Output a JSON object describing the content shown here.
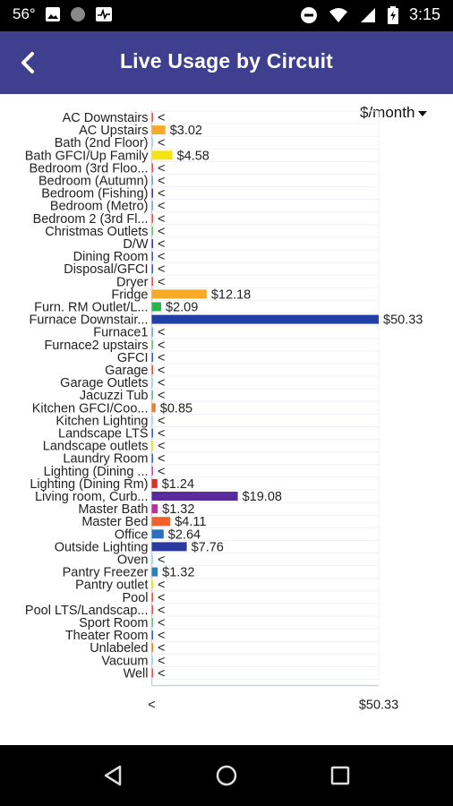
{
  "status": {
    "temp": "56°",
    "time": "3:15"
  },
  "app_bar": {
    "title": "Live Usage by Circuit"
  },
  "unit_selector": {
    "label": "$/month"
  },
  "colors": {
    "app_bar": "#3f3f8f",
    "axis": "#c9d3e0"
  },
  "chart_data": {
    "type": "bar",
    "orientation": "horizontal",
    "categories": [
      "AC Downstairs",
      "AC Upstairs",
      "Bath (2nd Floor)",
      "Bath GFCI/Up Family",
      "Bedroom (3rd Floo...",
      "Bedroom (Autumn)",
      "Bedroom (Fishing)",
      "Bedroom (Metro)",
      "Bedroom 2 (3rd Fl...",
      "Christmas Outlets",
      "D/W",
      "Dining Room",
      "Disposal/GFCI",
      "Dryer",
      "Fridge",
      "Furn. RM Outlet/L...",
      "Furnace Downstair...",
      "Furnace1",
      "Furnace2 upstairs",
      "GFCI",
      "Garage",
      "Garage Outlets",
      "Jacuzzi Tub",
      "Kitchen GFCI/Coo...",
      "Kitchen Lighting",
      "Landscape LTS",
      "Landscape outlets",
      "Laundry Room",
      "Lighting (Dining ...",
      "Lighting (Dining Rm)",
      "Living room, Curb...",
      "Master Bath",
      "Master Bed",
      "Office",
      "Outside Lighting",
      "Oven",
      "Pantry Freezer",
      "Pantry outlet",
      "Pool",
      "Pool LTS/Landscap...",
      "Sport Room",
      "Theater Room",
      "Unlabeled",
      "Vacuum",
      "Well"
    ],
    "values": [
      0,
      3.02,
      0,
      4.58,
      0,
      0,
      0,
      0,
      0,
      0,
      0,
      0,
      0,
      0,
      12.18,
      2.09,
      50.33,
      0,
      0,
      0,
      0,
      0,
      0,
      0.85,
      0,
      0,
      0,
      0,
      0,
      1.24,
      19.08,
      1.32,
      4.11,
      2.64,
      7.76,
      0,
      1.32,
      0,
      0,
      0,
      0,
      0,
      0,
      0,
      0
    ],
    "value_labels": [
      "<",
      "$3.02",
      "<",
      "$4.58",
      "<",
      "<",
      "<",
      "<",
      "<",
      "<",
      "<",
      "<",
      "<",
      "<",
      "$12.18",
      "$2.09",
      "$50.33",
      "<",
      "<",
      "<",
      "<",
      "<",
      "<",
      "$0.85",
      "<",
      "<",
      "<",
      "<",
      "<",
      "$1.24",
      "$19.08",
      "$1.32",
      "$4.11",
      "$2.64",
      "$7.76",
      "<",
      "$1.32",
      "<",
      "<",
      "<",
      "<",
      "<",
      "<",
      "<",
      "<"
    ],
    "colors": [
      "#e8534a",
      "#f7a928",
      "#a8d8ea",
      "#f5e214",
      "#e8534a",
      "#7aa6d6",
      "#3b3ba0",
      "#7aa6d6",
      "#e8534a",
      "#6fc07a",
      "#3b3ba0",
      "#3f5fbf",
      "#3f5fbf",
      "#e8534a",
      "#f7a928",
      "#2cb34a",
      "#213fa5",
      "#7aa6d6",
      "#6fc07a",
      "#3f5fbf",
      "#e8534a",
      "#a8d8ea",
      "#6fc07a",
      "#f07f2b",
      "#a8d8ea",
      "#3f5fbf",
      "#f5e214",
      "#3f5fbf",
      "#c04abf",
      "#e02b2b",
      "#5a2b9e",
      "#c02b9e",
      "#f0612b",
      "#2b6fbf",
      "#2b3a9e",
      "#a8d8ea",
      "#2b7fbf",
      "#f5e214",
      "#e8534a",
      "#e8534a",
      "#6fc07a",
      "#3f5fbf",
      "#f07f2b",
      "#a8d8ea",
      "#e8534a"
    ],
    "xlim": [
      0,
      50.33
    ],
    "x_tick_labels": [
      "<",
      "$50.33"
    ],
    "grid": true
  },
  "nav": {
    "back": "back-triangle",
    "home": "home-circle",
    "recents": "recents-square"
  }
}
